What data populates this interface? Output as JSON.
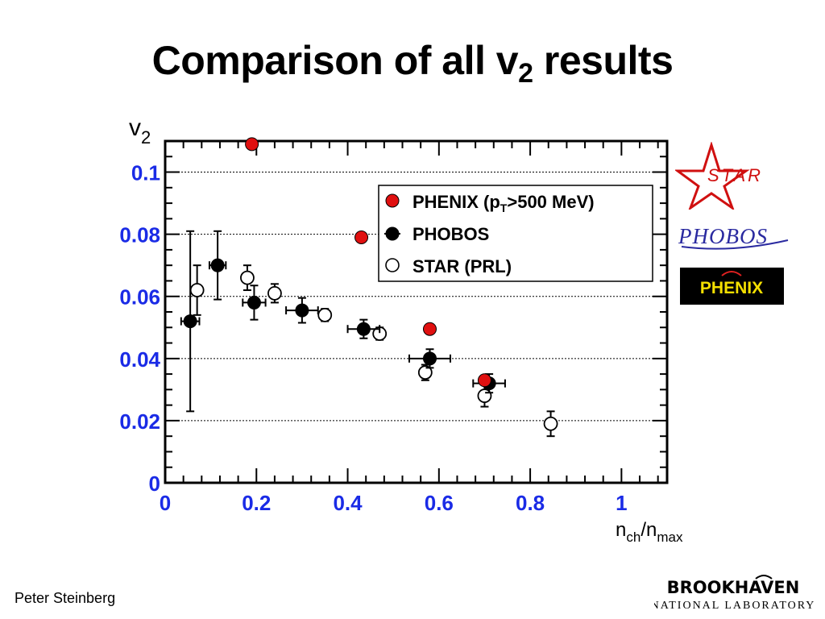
{
  "slide": {
    "title_main": "Comparison of all v",
    "title_sub": "2",
    "title_tail": " results",
    "author": "Peter Steinberg"
  },
  "logos": {
    "star": "STAR",
    "phobos": "PHOBOS",
    "phenix": "PHENIX",
    "bnl_line1": "BROOKHAVEN",
    "bnl_line2": "NATIONAL LABORATORY"
  },
  "colors": {
    "axis_tick_labels": "#1a2be6",
    "phenix_marker": "#e01010",
    "phobos_marker": "#000000",
    "star_marker_fill": "#ffffff",
    "star_logo": "#d01010",
    "phobos_logo": "#2a2aa0",
    "phenix_logo_bg": "#000000",
    "phenix_logo_text": "#f5e000"
  },
  "chart_data": {
    "type": "scatter",
    "ylabel": {
      "main": "v",
      "sub": "2"
    },
    "xlabel": {
      "main": "n",
      "sub1": "ch",
      "mid": "/n",
      "sub2": "max"
    },
    "xlim": [
      0,
      1.1
    ],
    "ylim": [
      0,
      0.11
    ],
    "xticks": [
      0,
      0.2,
      0.4,
      0.6,
      0.8,
      1
    ],
    "xtick_labels": [
      "0",
      "0.2",
      "0.4",
      "0.6",
      "0.8",
      "1"
    ],
    "yticks": [
      0,
      0.02,
      0.04,
      0.06,
      0.08,
      0.1
    ],
    "ytick_labels": [
      "0",
      "0.02",
      "0.04",
      "0.06",
      "0.08",
      "0.1"
    ],
    "grid": "horizontal-dotted",
    "legend_position": "top-right",
    "series": [
      {
        "name": "PHENIX (p",
        "name_sub": "T",
        "name_tail": ">500 MeV)",
        "marker": "filled-red",
        "points": [
          {
            "x": 0.19,
            "y": 0.109
          },
          {
            "x": 0.43,
            "y": 0.079
          },
          {
            "x": 0.58,
            "y": 0.0495
          },
          {
            "x": 0.7,
            "y": 0.033
          }
        ]
      },
      {
        "name": "PHOBOS",
        "marker": "filled-black",
        "points": [
          {
            "x": 0.055,
            "y": 0.052,
            "ex": 0.02,
            "ey": 0.029
          },
          {
            "x": 0.115,
            "y": 0.07,
            "ex": 0.018,
            "ey": 0.011
          },
          {
            "x": 0.195,
            "y": 0.058,
            "ex": 0.025,
            "ey": 0.0055
          },
          {
            "x": 0.3,
            "y": 0.0555,
            "ex": 0.035,
            "ey": 0.004
          },
          {
            "x": 0.435,
            "y": 0.0495,
            "ex": 0.035,
            "ey": 0.003
          },
          {
            "x": 0.58,
            "y": 0.04,
            "ex": 0.045,
            "ey": 0.003
          },
          {
            "x": 0.71,
            "y": 0.032,
            "ex": 0.035,
            "ey": 0.003
          }
        ]
      },
      {
        "name": "STAR (PRL)",
        "marker": "open-black",
        "points": [
          {
            "x": 0.07,
            "y": 0.062,
            "ey": 0.008
          },
          {
            "x": 0.18,
            "y": 0.066,
            "ey": 0.004
          },
          {
            "x": 0.24,
            "y": 0.061,
            "ey": 0.003
          },
          {
            "x": 0.35,
            "y": 0.054,
            "ey": 0.002
          },
          {
            "x": 0.47,
            "y": 0.048,
            "ey": 0.002
          },
          {
            "x": 0.57,
            "y": 0.0355,
            "ey": 0.0025
          },
          {
            "x": 0.7,
            "y": 0.028,
            "ey": 0.0035
          },
          {
            "x": 0.845,
            "y": 0.019,
            "ey": 0.004
          }
        ]
      }
    ]
  }
}
